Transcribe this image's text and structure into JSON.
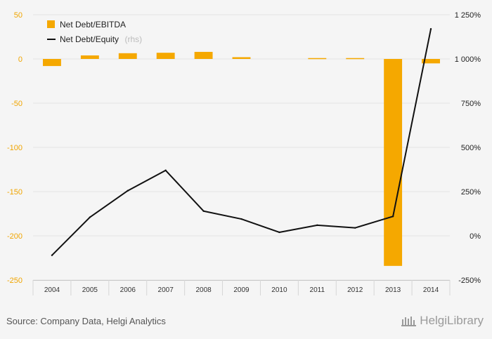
{
  "chart_data": {
    "type": "bar+line",
    "categories": [
      "2004",
      "2005",
      "2006",
      "2007",
      "2008",
      "2009",
      "2010",
      "2011",
      "2012",
      "2013",
      "2014"
    ],
    "series": [
      {
        "name": "Net Debt/EBITDA",
        "type": "bar",
        "axis": "left",
        "color": "#f5a800",
        "values": [
          -8,
          4,
          6.5,
          7,
          8,
          2,
          0,
          1,
          1,
          -234,
          -5
        ]
      },
      {
        "name": "Net Debt/Equity",
        "note": "(rhs)",
        "type": "line",
        "axis": "right",
        "color": "#111111",
        "values": [
          -110,
          105,
          255,
          370,
          140,
          95,
          20,
          60,
          45,
          110,
          1170
        ]
      }
    ],
    "left_axis": {
      "ylim": [
        -250,
        50
      ],
      "ticks": [
        "50",
        "0",
        "-50",
        "-100",
        "-150",
        "-200",
        "-250"
      ]
    },
    "right_axis": {
      "ylim": [
        -250,
        1250
      ],
      "ticks": [
        "1 250%",
        "1 000%",
        "750%",
        "500%",
        "250%",
        "0%",
        "-250%"
      ]
    },
    "grid": true,
    "legend_position": "top-left"
  },
  "footer": {
    "source": "Source: Company Data, Helgi Analytics",
    "brand": "HelgiLibrary"
  }
}
